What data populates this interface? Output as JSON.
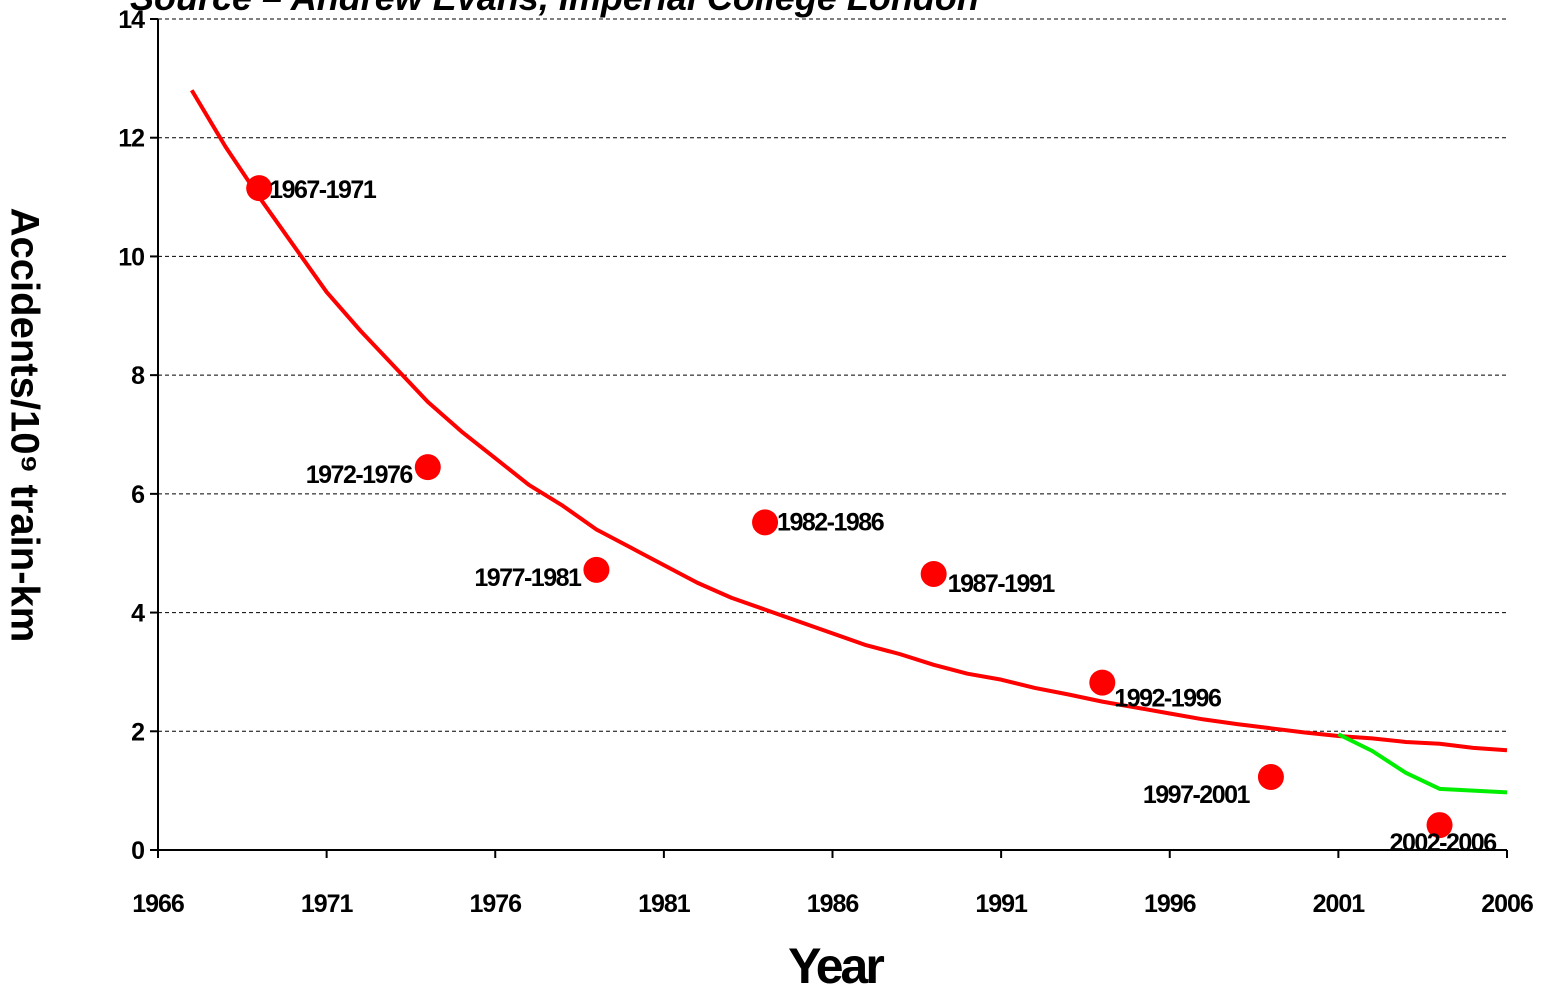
{
  "chart_data": {
    "type": "line",
    "title": "Source – Andrew Evans, Imperial College London",
    "x_label": "Year",
    "y_label": "Accidents/10⁹ train-km",
    "xlim": [
      1966,
      2006
    ],
    "ylim": [
      0,
      14
    ],
    "xticks": [
      1966,
      1971,
      1976,
      1981,
      1986,
      1991,
      1996,
      2001,
      2006
    ],
    "yticks": [
      0,
      2,
      4,
      6,
      8,
      10,
      12,
      14
    ],
    "grid": true,
    "series": [
      {
        "type": "line",
        "color": "#ff0000",
        "x": [
          1967,
          1968,
          1969,
          1970,
          1971,
          1972,
          1973,
          1974,
          1975,
          1976,
          1977,
          1978,
          1979,
          1980,
          1981,
          1982,
          1983,
          1984,
          1985,
          1986,
          1987,
          1988,
          1989,
          1990,
          1991,
          1992,
          1993,
          1994,
          1995,
          1996,
          1997,
          1998,
          1999,
          2000,
          2001,
          2002,
          2003,
          2004,
          2005,
          2006
        ],
        "values": [
          12.8,
          11.85,
          11.0,
          10.2,
          9.4,
          8.75,
          8.15,
          7.55,
          7.05,
          6.6,
          6.15,
          5.8,
          5.4,
          5.1,
          4.8,
          4.5,
          4.25,
          4.05,
          3.85,
          3.65,
          3.45,
          3.3,
          3.12,
          2.97,
          2.87,
          2.73,
          2.62,
          2.5,
          2.4,
          2.3,
          2.2,
          2.12,
          2.05,
          1.98,
          1.92,
          1.88,
          1.82,
          1.79,
          1.72,
          1.68
        ]
      },
      {
        "type": "line",
        "color": "#00ee00",
        "x": [
          2001,
          2002,
          2003,
          2004,
          2005,
          2006
        ],
        "values": [
          1.95,
          1.67,
          1.3,
          1.03,
          1.0,
          0.97
        ]
      },
      {
        "type": "scatter",
        "color": "#ff0000",
        "x": [
          1969,
          1974,
          1979,
          1984,
          1989,
          1994,
          1999,
          2004
        ],
        "values": [
          11.15,
          6.45,
          4.72,
          5.52,
          4.65,
          2.82,
          1.23,
          0.42
        ],
        "labels": [
          "1967-1971",
          "1972-1976",
          "1977-1981",
          "1982-1986",
          "1987-1991",
          "1992-1996",
          "1997-2001",
          "2002-2006"
        ]
      }
    ]
  }
}
